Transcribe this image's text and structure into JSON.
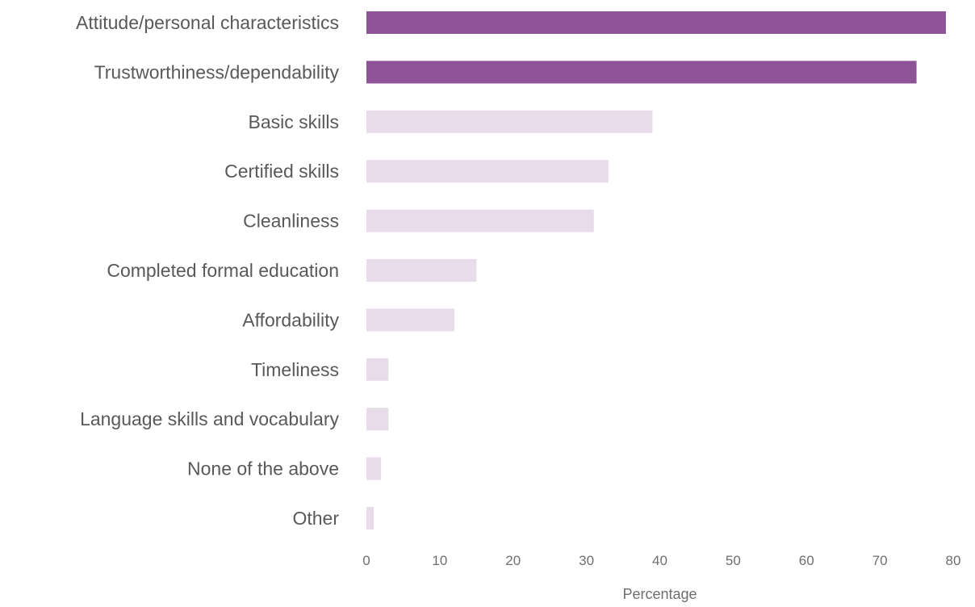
{
  "chart_data": {
    "type": "bar",
    "orientation": "horizontal",
    "categories": [
      "Attitude/personal characteristics",
      "Trustworthiness/dependability",
      "Basic skills",
      "Certified skills",
      "Cleanliness",
      "Completed formal education",
      "Affordability",
      "Timeliness",
      "Language skills and vocabulary",
      "None of the above",
      "Other"
    ],
    "values": [
      79,
      75,
      39,
      33,
      31,
      15,
      12,
      3,
      3,
      2,
      1
    ],
    "highlighted": [
      true,
      true,
      false,
      false,
      false,
      false,
      false,
      false,
      false,
      false,
      false
    ],
    "xlabel": "Percentage",
    "ylabel": "",
    "xlim": [
      0,
      80
    ],
    "xticks": [
      "0",
      "10",
      "20",
      "30",
      "40",
      "50",
      "60",
      "70",
      "80"
    ],
    "grid": false,
    "legend": "none",
    "colors": {
      "highlight": "#8e5497",
      "muted": "#e8dcea",
      "label_text": "#58595b",
      "tick_text": "#6d6e71"
    }
  }
}
